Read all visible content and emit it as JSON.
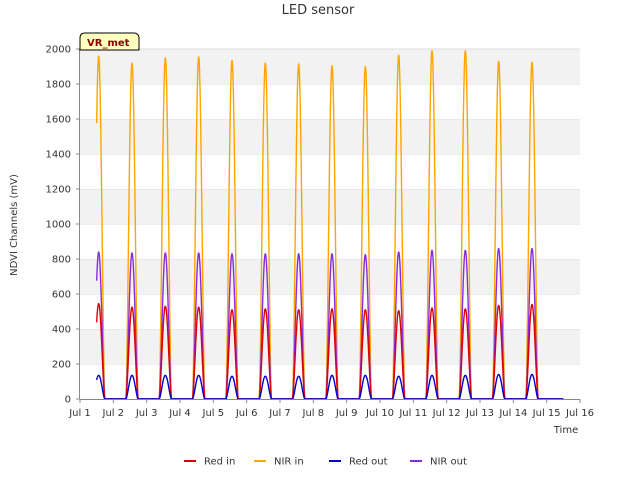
{
  "chart_data": {
    "type": "line",
    "title": "LED sensor",
    "xlabel": "Time",
    "ylabel": "NDVI Channels (mV)",
    "badge": "VR_met",
    "ylim": [
      0,
      2000
    ],
    "yticks": [
      0,
      200,
      400,
      600,
      800,
      1000,
      1200,
      1400,
      1600,
      1800,
      2000
    ],
    "xlim_day": [
      1,
      16
    ],
    "xtick_labels": [
      "Jul 1",
      "Jul 2",
      "Jul 3",
      "Jul 4",
      "Jul 5",
      "Jul 6",
      "Jul 7",
      "Jul 8",
      "Jul 9",
      "Jul 10",
      "Jul 11",
      "Jul 12",
      "Jul 13",
      "Jul 14",
      "Jul 15",
      "Jul 16"
    ],
    "grid": "horizontal bands",
    "legend_position": "bottom",
    "peak_days": [
      "Jul 1",
      "Jul 2",
      "Jul 3",
      "Jul 4",
      "Jul 5",
      "Jul 6",
      "Jul 7",
      "Jul 8",
      "Jul 9",
      "Jul 10",
      "Jul 11",
      "Jul 12",
      "Jul 13",
      "Jul 14"
    ],
    "series": [
      {
        "name": "Red in",
        "color": "#dd0000",
        "daily_peak": [
          545,
          525,
          530,
          525,
          510,
          515,
          510,
          515,
          510,
          505,
          520,
          515,
          535,
          540
        ]
      },
      {
        "name": "NIR in",
        "color": "#ffa500",
        "daily_peak": [
          1960,
          1920,
          1950,
          1955,
          1935,
          1920,
          1915,
          1905,
          1900,
          1965,
          1990,
          1990,
          1930,
          1925
        ]
      },
      {
        "name": "Red out",
        "color": "#0000cc",
        "daily_peak": [
          135,
          135,
          135,
          135,
          130,
          130,
          130,
          135,
          135,
          130,
          135,
          135,
          140,
          140
        ]
      },
      {
        "name": "NIR out",
        "color": "#8a2be2",
        "daily_peak": [
          840,
          835,
          835,
          835,
          830,
          830,
          830,
          830,
          825,
          840,
          850,
          850,
          860,
          860
        ]
      }
    ]
  }
}
